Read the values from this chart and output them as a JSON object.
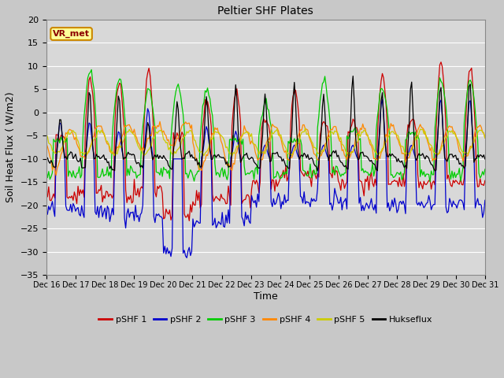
{
  "title": "Peltier SHF Plates",
  "xlabel": "Time",
  "ylabel": "Soil Heat Flux ( W/m2)",
  "ylim": [
    -35,
    20
  ],
  "yticks": [
    -35,
    -30,
    -25,
    -20,
    -15,
    -10,
    -5,
    0,
    5,
    10,
    15,
    20
  ],
  "fig_bg_color": "#c8c8c8",
  "plot_bg_color": "#d8d8d8",
  "grid_color": "#ffffff",
  "annotation_label": "VR_met",
  "annotation_box_color": "#ffff99",
  "annotation_box_edge": "#cc8800",
  "annotation_text_color": "#8b0000",
  "legend_entries": [
    "pSHF 1",
    "pSHF 2",
    "pSHF 3",
    "pSHF 4",
    "pSHF 5",
    "Hukseflux"
  ],
  "line_colors": [
    "#cc0000",
    "#0000cc",
    "#00cc00",
    "#ff8800",
    "#cccc00",
    "#000000"
  ],
  "xtick_labels": [
    "Dec 16",
    "Dec 17",
    "Dec 18",
    "Dec 19",
    "Dec 20",
    "Dec 21",
    "Dec 22",
    "Dec 23",
    "Dec 24",
    "Dec 25",
    "Dec 26",
    "Dec 27",
    "Dec 28",
    "Dec 29",
    "Dec 30",
    "Dec 31"
  ]
}
